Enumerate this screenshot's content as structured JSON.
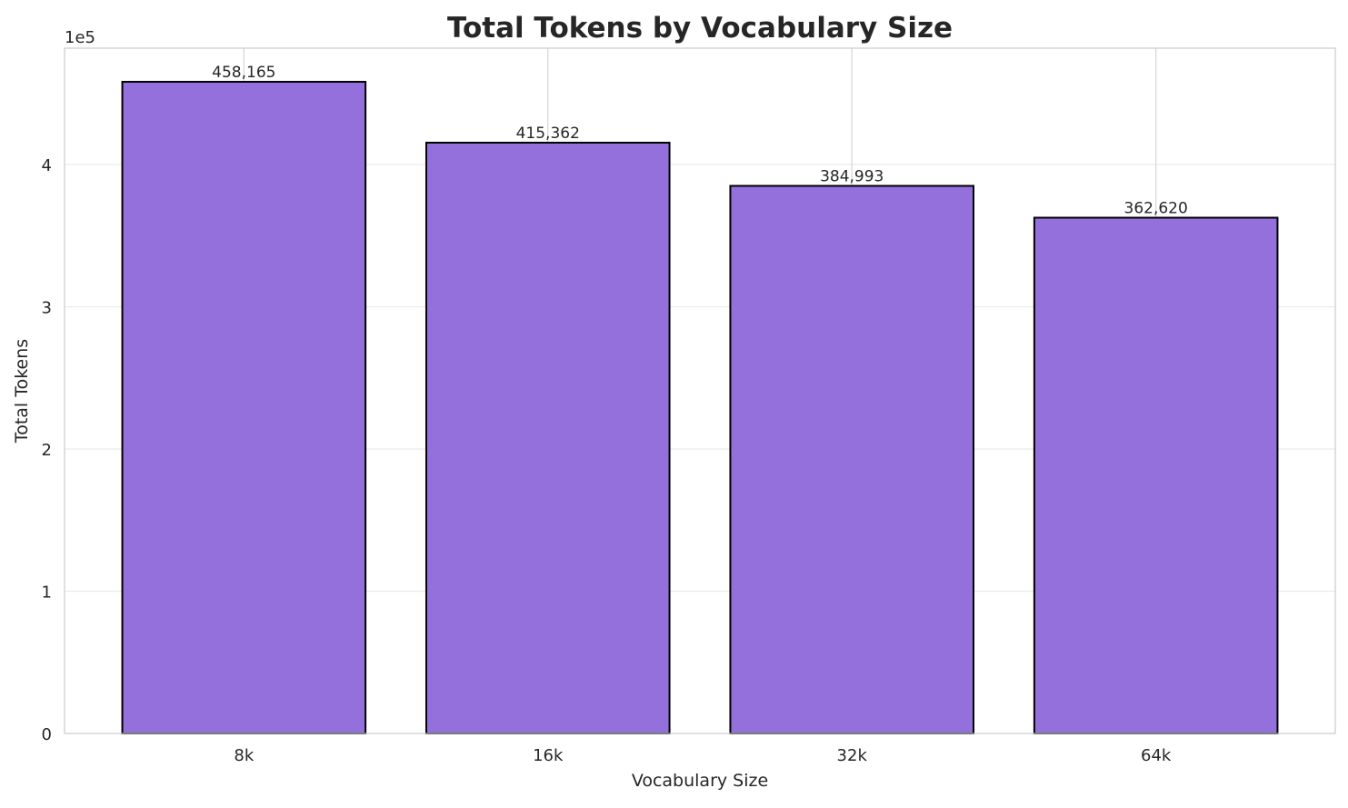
{
  "chart_data": {
    "type": "bar",
    "title": "Total Tokens by Vocabulary Size",
    "xlabel": "Vocabulary Size",
    "ylabel": "Total Tokens",
    "y_offset_label": "1e5",
    "categories": [
      "8k",
      "16k",
      "32k",
      "64k"
    ],
    "values": [
      458165,
      415362,
      384993,
      362620
    ],
    "data_labels": [
      "458,165",
      "415,362",
      "384,993",
      "362,620"
    ],
    "yticks": [
      0,
      100000,
      200000,
      300000,
      400000
    ],
    "ytick_labels": [
      "0",
      "1",
      "2",
      "3",
      "4"
    ],
    "ylim": [
      0,
      481800
    ],
    "xlim": [
      -0.59,
      3.59
    ],
    "bar_width": 0.8,
    "grid": true,
    "colors": {
      "bar": "#9370DB",
      "edge": "#000000",
      "grid": "#EBEBEB",
      "xgrid": "#D5D5D5",
      "spine": "#CCCCCC"
    }
  }
}
